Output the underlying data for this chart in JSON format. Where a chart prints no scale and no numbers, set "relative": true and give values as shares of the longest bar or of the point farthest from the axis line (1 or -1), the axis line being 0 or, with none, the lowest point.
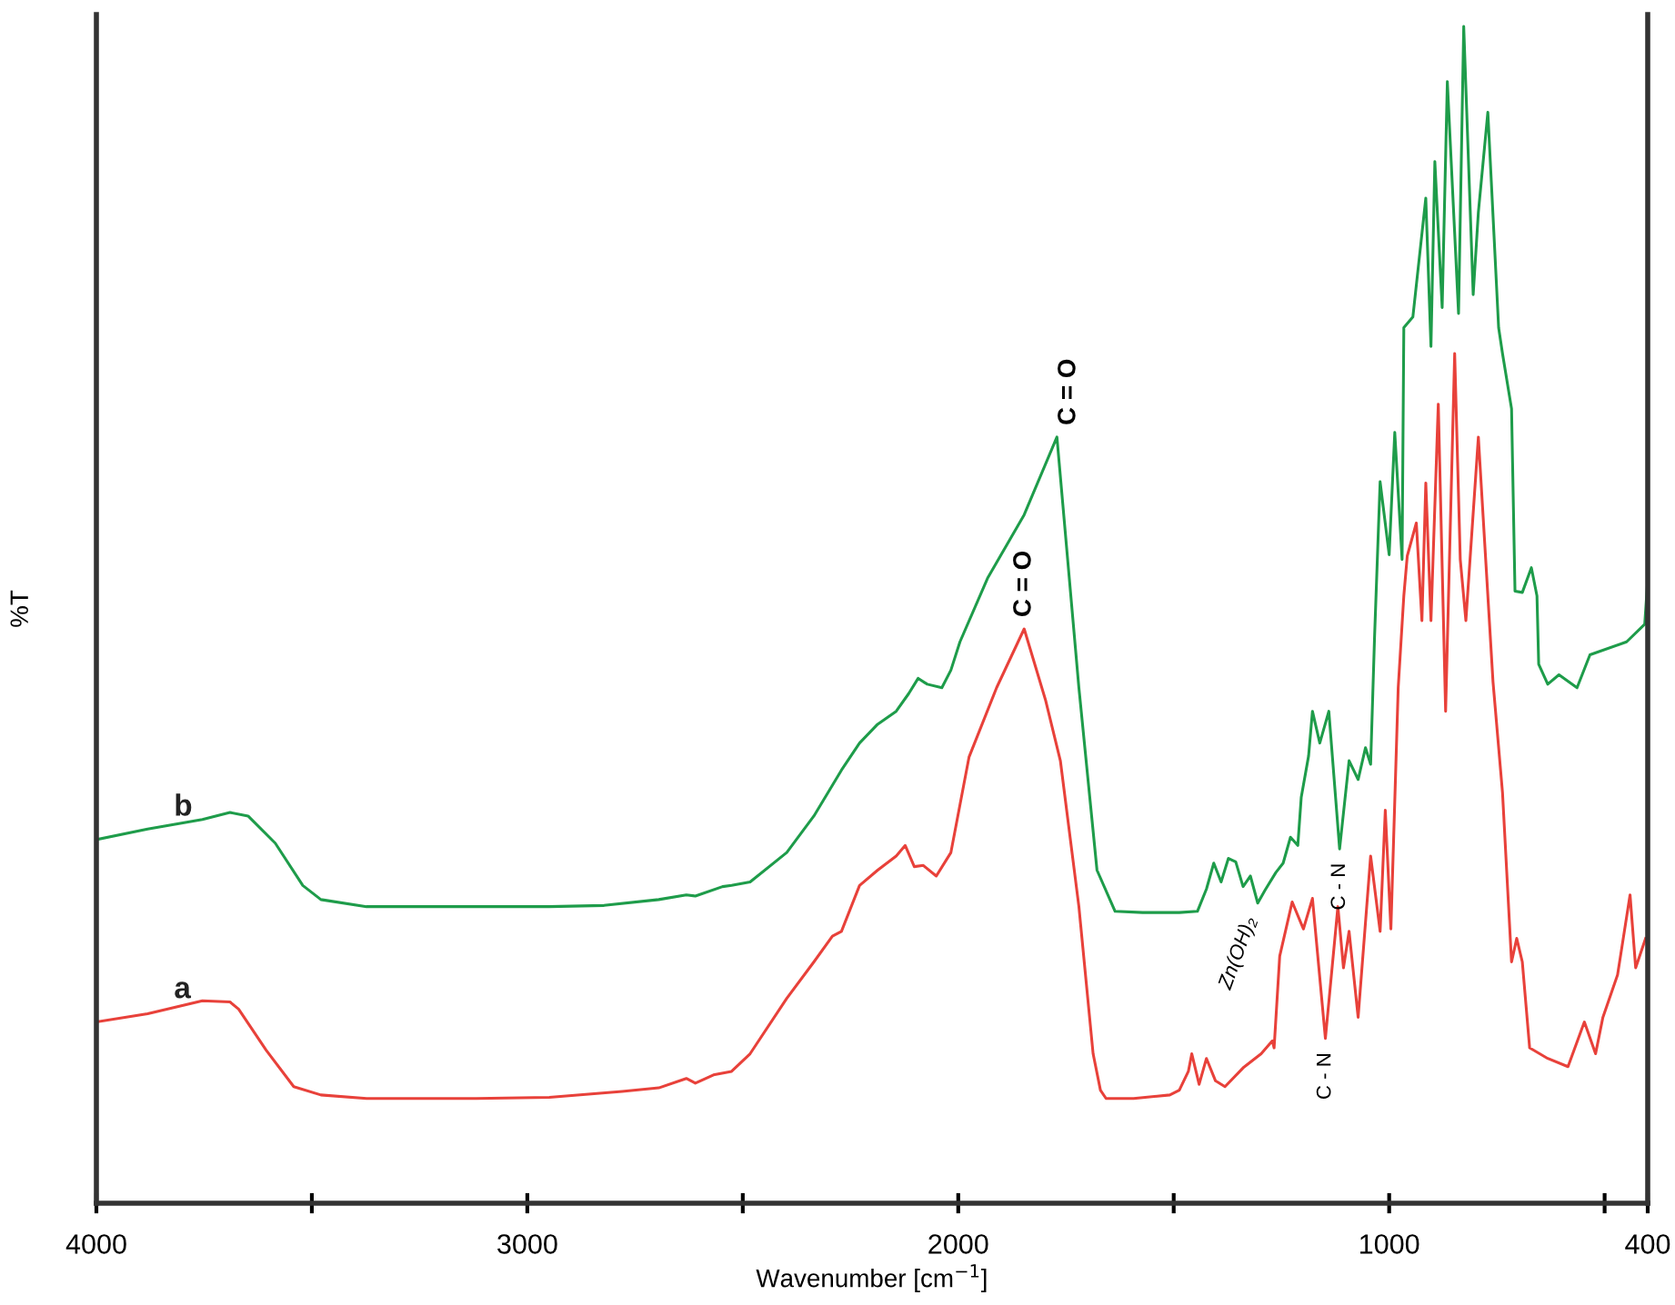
{
  "chart_data": {
    "type": "line",
    "relative": true,
    "xlabel": "Wavenumber [cm$^{−1}$]",
    "ylabel": "%T",
    "xlim": [
      4000,
      400
    ],
    "xticks": [
      4000,
      {
        "value": 3500,
        "label": null
      },
      3000,
      {
        "value": 2500,
        "label": null
      },
      2000,
      {
        "value": 1500,
        "label": null
      },
      1000,
      {
        "value": 500,
        "label": null
      },
      400
    ],
    "grid": false,
    "legend": false,
    "marker": "none",
    "line_style": "solid",
    "annotations": [
      {
        "text": "C = O",
        "x": 1771,
        "y": 0.651
      },
      {
        "text": "C = O",
        "x": 1847,
        "y": 0.488
      },
      {
        "text": "Zn(OH)₂",
        "x": 1300,
        "y": 0.255
      },
      {
        "text": "C - N",
        "x": 1148,
        "y": 0.14
      },
      {
        "text": "C - N",
        "x": 1115,
        "y": 0.301
      }
    ],
    "series": [
      {
        "name": "b",
        "color": "#1e9c4a",
        "x": [
          4000,
          3881,
          3754,
          3690,
          3648,
          3585,
          3521,
          3479,
          3373,
          3161,
          2949,
          2822,
          2695,
          2631,
          2610,
          2547,
          2526,
          2483,
          2398,
          2335,
          2271,
          2229,
          2187,
          2144,
          2115,
          2093,
          2072,
          2038,
          2017,
          1996,
          1932,
          1847,
          1771,
          1720,
          1678,
          1636,
          1572,
          1487,
          1445,
          1424,
          1407,
          1390,
          1373,
          1356,
          1339,
          1322,
          1305,
          1288,
          1263,
          1246,
          1229,
          1212,
          1204,
          1187,
          1178,
          1161,
          1140,
          1115,
          1093,
          1072,
          1055,
          1043,
          1034,
          1021,
          1000,
          987,
          970,
          966,
          945,
          915,
          903,
          894,
          877,
          865,
          839,
          827,
          805,
          793,
          771,
          746,
          737,
          716,
          708,
          691,
          670,
          657,
          653,
          632,
          606,
          564,
          534,
          449,
          407,
          400
        ],
        "values": [
          0.309,
          0.318,
          0.326,
          0.332,
          0.329,
          0.306,
          0.27,
          0.258,
          0.252,
          0.252,
          0.252,
          0.253,
          0.258,
          0.262,
          0.261,
          0.269,
          0.27,
          0.273,
          0.298,
          0.329,
          0.368,
          0.391,
          0.407,
          0.418,
          0.433,
          0.446,
          0.441,
          0.438,
          0.453,
          0.477,
          0.531,
          0.585,
          0.651,
          0.438,
          0.283,
          0.248,
          0.247,
          0.247,
          0.248,
          0.267,
          0.289,
          0.273,
          0.293,
          0.29,
          0.269,
          0.278,
          0.255,
          0.266,
          0.281,
          0.289,
          0.311,
          0.304,
          0.345,
          0.38,
          0.418,
          0.391,
          0.418,
          0.301,
          0.376,
          0.36,
          0.387,
          0.373,
          0.48,
          0.613,
          0.551,
          0.655,
          0.547,
          0.744,
          0.753,
          0.854,
          0.728,
          0.885,
          0.761,
          0.953,
          0.756,
          1.0,
          0.772,
          0.842,
          0.927,
          0.744,
          0.722,
          0.675,
          0.52,
          0.519,
          0.54,
          0.516,
          0.458,
          0.441,
          0.449,
          0.438,
          0.466,
          0.477,
          0.492,
          0.53
        ]
      },
      {
        "name": "a",
        "color": "#e8413a",
        "x": [
          4000,
          3881,
          3754,
          3690,
          3670,
          3606,
          3542,
          3479,
          3373,
          3119,
          2949,
          2780,
          2695,
          2631,
          2610,
          2568,
          2526,
          2483,
          2398,
          2335,
          2292,
          2271,
          2229,
          2187,
          2144,
          2123,
          2102,
          2081,
          2051,
          2017,
          1975,
          1911,
          1847,
          1797,
          1763,
          1720,
          1687,
          1670,
          1657,
          1593,
          1509,
          1487,
          1466,
          1458,
          1441,
          1424,
          1403,
          1381,
          1339,
          1297,
          1271,
          1267,
          1254,
          1225,
          1199,
          1178,
          1148,
          1119,
          1106,
          1093,
          1072,
          1043,
          1021,
          1009,
          996,
          979,
          966,
          958,
          937,
          924,
          915,
          903,
          886,
          869,
          848,
          835,
          822,
          793,
          776,
          759,
          737,
          716,
          704,
          691,
          674,
          632,
          585,
          547,
          521,
          504,
          470,
          441,
          428,
          405
        ],
        "values": [
          0.154,
          0.161,
          0.172,
          0.171,
          0.165,
          0.13,
          0.099,
          0.092,
          0.089,
          0.089,
          0.09,
          0.095,
          0.098,
          0.106,
          0.102,
          0.109,
          0.112,
          0.127,
          0.174,
          0.205,
          0.227,
          0.231,
          0.27,
          0.283,
          0.295,
          0.304,
          0.286,
          0.287,
          0.278,
          0.298,
          0.379,
          0.438,
          0.488,
          0.427,
          0.376,
          0.252,
          0.127,
          0.096,
          0.089,
          0.089,
          0.092,
          0.096,
          0.112,
          0.127,
          0.101,
          0.123,
          0.104,
          0.099,
          0.115,
          0.127,
          0.138,
          0.132,
          0.21,
          0.256,
          0.233,
          0.259,
          0.14,
          0.252,
          0.2,
          0.231,
          0.158,
          0.295,
          0.231,
          0.334,
          0.233,
          0.438,
          0.516,
          0.55,
          0.578,
          0.495,
          0.612,
          0.495,
          0.679,
          0.418,
          0.722,
          0.547,
          0.495,
          0.651,
          0.547,
          0.443,
          0.349,
          0.205,
          0.225,
          0.205,
          0.132,
          0.123,
          0.116,
          0.154,
          0.127,
          0.158,
          0.194,
          0.262,
          0.2,
          0.225
        ]
      }
    ]
  }
}
